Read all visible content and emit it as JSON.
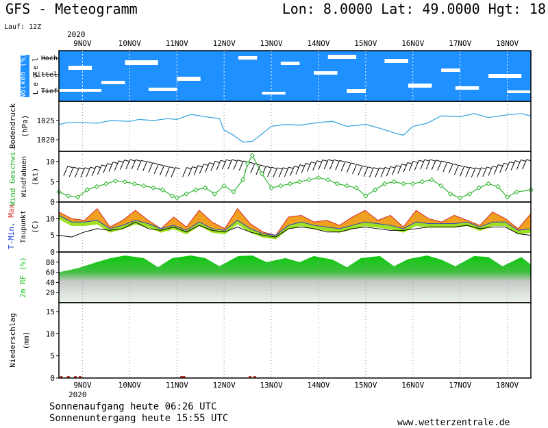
{
  "header": {
    "title": "GFS - Meteogramm",
    "location": "Lon: 8.0000  Lat: 49.0000  Hgt: 18",
    "run": "Lauf: 12Z",
    "year": "2020"
  },
  "footer": {
    "sunrise": "Sonnenaufgang heute 06:26 UTC",
    "sunset": "Sonnenuntergang heute 15:55 UTC",
    "source": "www.wetterzentrale.de"
  },
  "colors": {
    "cloud_sky": "#1e90ff",
    "pressure_line": "#3fa9e0",
    "wind_line": "#2db52d",
    "temp_max_fill": "#f0a020",
    "temp_mid_fill": "#e0e020",
    "temp_low_fill": "#a0e020",
    "rh_fill": "#19c419",
    "precip_rain": "#c0392b"
  },
  "chart_data": [
    {
      "type": "heatmap",
      "ylabel": "Wolken (%)",
      "ylabel_sub": "L e v e l",
      "levels": [
        "Hoch",
        "Mittel",
        "Tief"
      ],
      "x_dates": [
        "9NOV",
        "10NOV",
        "11NOV",
        "12NOV",
        "13NOV",
        "14NOV",
        "15NOV",
        "16NOV",
        "17NOV",
        "18NOV"
      ]
    },
    {
      "type": "line",
      "ylabel": "Bodendruck",
      "unit": "(hPa)",
      "yticks": [
        1020,
        1025
      ],
      "ylim": [
        1017,
        1030
      ],
      "days": [
        8.5,
        8.7,
        9.0,
        9.3,
        9.6,
        10.0,
        10.2,
        10.5,
        10.8,
        11.0,
        11.3,
        11.6,
        11.9,
        12.0,
        12.2,
        12.4,
        12.6,
        12.8,
        13.0,
        13.3,
        13.6,
        14.0,
        14.3,
        14.6,
        15.0,
        15.3,
        15.6,
        15.8,
        16.0,
        16.3,
        16.6,
        17.0,
        17.3,
        17.6,
        18.0,
        18.3,
        18.5
      ],
      "values": [
        1024,
        1024.5,
        1024.5,
        1024.3,
        1025,
        1024.8,
        1025.3,
        1025,
        1025.5,
        1025.3,
        1026.6,
        1026,
        1025.5,
        1022.5,
        1021.2,
        1019.4,
        1019.6,
        1021.5,
        1023.5,
        1024,
        1023.8,
        1024.5,
        1024.8,
        1023.5,
        1024,
        1023,
        1021.8,
        1021.2,
        1023.5,
        1024.3,
        1026.2,
        1026,
        1026.8,
        1025.8,
        1026.5,
        1026.8,
        1026.2
      ]
    },
    {
      "type": "line",
      "ylabel": "Wind Geschwi.",
      "ylabel_sub": "Windfahnen",
      "unit": "(kt)",
      "yticks": [
        0,
        5,
        10
      ],
      "ylim": [
        0,
        12.5
      ],
      "days": [
        8.5,
        8.7,
        8.9,
        9.1,
        9.3,
        9.5,
        9.7,
        9.9,
        10.1,
        10.3,
        10.5,
        10.7,
        10.9,
        11.0,
        11.2,
        11.4,
        11.6,
        11.8,
        12.0,
        12.2,
        12.4,
        12.5,
        12.6,
        12.8,
        13.0,
        13.2,
        13.4,
        13.6,
        13.8,
        14.0,
        14.2,
        14.4,
        14.6,
        14.8,
        15.0,
        15.2,
        15.4,
        15.6,
        15.8,
        16.0,
        16.2,
        16.4,
        16.6,
        16.8,
        17.0,
        17.2,
        17.4,
        17.6,
        17.8,
        18.0,
        18.2,
        18.5
      ],
      "values": [
        2.5,
        1.5,
        1.2,
        3,
        3.8,
        4.5,
        5.2,
        5,
        4.5,
        4,
        3.5,
        3,
        1.5,
        1,
        2,
        3,
        3.5,
        2,
        4,
        2.5,
        5.5,
        9.5,
        11.5,
        7,
        3.5,
        4,
        4.5,
        5,
        5.5,
        6,
        5.5,
        4.5,
        4,
        3.5,
        1.5,
        3,
        4.5,
        5,
        4.5,
        4.5,
        5,
        5.5,
        4,
        2,
        1,
        2,
        3.5,
        4.5,
        3.8,
        1.2,
        2.5,
        3
      ]
    },
    {
      "type": "area",
      "ylabel_parts": [
        "T-Min,",
        "Max"
      ],
      "ylabel_sub": "Taupunkt",
      "unit": "(C)",
      "yticks": [
        0,
        5,
        10
      ],
      "ylim": [
        0,
        15
      ],
      "series": [
        {
          "name": "Max",
          "values": [
            12,
            10,
            9.5,
            13,
            7.5,
            9.5,
            12.5,
            9.5,
            7,
            10.5,
            7.5,
            12.5,
            9,
            7,
            13,
            8.5,
            6,
            5,
            10.5,
            11,
            9,
            9.5,
            8,
            10.5,
            12.5,
            9.5,
            11,
            7.5,
            12.5,
            10,
            9,
            11,
            9.5,
            8,
            12,
            10,
            7,
            11.5
          ]
        },
        {
          "name": "Min",
          "values": [
            11,
            9,
            9,
            9.5,
            7,
            8,
            9.5,
            8.5,
            7,
            8,
            6.5,
            9,
            7,
            6.5,
            9.5,
            7,
            5.5,
            5,
            8,
            9,
            8,
            7.5,
            7,
            8,
            9,
            8.5,
            8,
            7,
            9,
            8.5,
            8.5,
            8.5,
            9,
            7.5,
            9,
            9,
            6.5,
            7
          ]
        },
        {
          "name": "Taupunkt",
          "values": [
            5,
            4.5,
            6,
            7,
            6.5,
            7,
            9,
            7,
            6.5,
            7.5,
            6,
            8,
            6.5,
            6,
            7.5,
            6,
            5,
            4.5,
            7,
            7.5,
            7,
            6,
            6,
            7,
            7.5,
            7,
            6.5,
            6.5,
            7,
            7.5,
            7.5,
            7.5,
            8,
            7,
            7.5,
            7.5,
            5.5,
            5
          ]
        }
      ]
    },
    {
      "type": "area",
      "ylabel": "2m RF (%)",
      "yticks": [
        20,
        40,
        60,
        80
      ],
      "ylim": [
        0,
        100
      ],
      "days": [
        8.5,
        8.9,
        9.3,
        9.6,
        9.9,
        10.3,
        10.6,
        10.9,
        11.3,
        11.6,
        11.9,
        12.3,
        12.6,
        12.9,
        13.3,
        13.6,
        13.9,
        14.3,
        14.6,
        14.9,
        15.3,
        15.6,
        15.9,
        16.3,
        16.6,
        16.9,
        17.3,
        17.6,
        17.9,
        18.3,
        18.5
      ],
      "values": [
        60,
        68,
        80,
        88,
        93,
        88,
        70,
        88,
        93,
        88,
        72,
        92,
        93,
        80,
        88,
        80,
        92,
        85,
        70,
        88,
        92,
        72,
        86,
        93,
        85,
        72,
        92,
        90,
        72,
        90,
        75
      ]
    },
    {
      "type": "bar",
      "ylabel": "Niederschlag",
      "unit": "(mm)",
      "yticks": [
        0,
        5,
        10,
        15
      ],
      "ylim": [
        0,
        17
      ],
      "days": [
        8.55,
        8.7,
        8.85,
        8.95,
        11.1,
        11.15,
        12.55,
        12.65
      ],
      "values": [
        0.1,
        0.2,
        0.1,
        0.2,
        0.1,
        0.1,
        0.05,
        0.05
      ]
    }
  ]
}
